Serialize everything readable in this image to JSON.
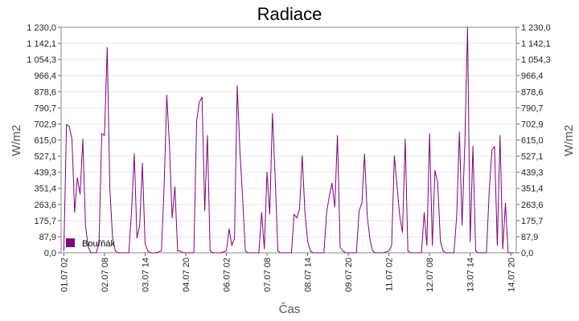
{
  "chart_data": {
    "type": "line",
    "title": "Radiace",
    "xlabel": "Čas",
    "ylabel": "W/m2",
    "ylabel_right": "W/m2",
    "ylim": [
      0,
      1230
    ],
    "yticks": [
      "0,0",
      "87,9",
      "175,7",
      "263,6",
      "351,4",
      "439,3",
      "527,1",
      "615,0",
      "702,9",
      "790,7",
      "878,6",
      "966,4",
      "1 054,3",
      "1 142,1",
      "1 230,0"
    ],
    "xtick_labels": [
      "01.07 02",
      "02.07 08",
      "03.07 14",
      "04.07 20",
      "06.07 02",
      "07.07 08",
      "08.07 14",
      "09.07 20",
      "11.07 02",
      "12.07 08",
      "13.07 14",
      "14.07 20"
    ],
    "x_start": "01.07 00",
    "x_end": "14.07 24",
    "grid": true,
    "legend_position": "bottom-left",
    "series": [
      {
        "name": "Bouřňák",
        "color": "#800080",
        "x": [
          "01.07 02",
          "01.07 04",
          "01.07 06",
          "01.07 08",
          "01.07 10",
          "01.07 12",
          "01.07 14",
          "01.07 16",
          "01.07 18",
          "01.07 20",
          "01.07 22",
          "02.07 02",
          "02.07 04",
          "02.07 06",
          "02.07 08",
          "02.07 10",
          "02.07 12",
          "02.07 14",
          "02.07 16",
          "02.07 18",
          "02.07 20",
          "02.07 22",
          "03.07 02",
          "03.07 04",
          "03.07 06",
          "03.07 08",
          "03.07 10",
          "03.07 12",
          "03.07 14",
          "03.07 16",
          "03.07 18",
          "03.07 20",
          "03.07 22",
          "04.07 02",
          "04.07 04",
          "04.07 06",
          "04.07 08",
          "04.07 10",
          "04.07 12",
          "04.07 14",
          "04.07 16",
          "04.07 18",
          "04.07 20",
          "04.07 22",
          "05.07 02",
          "05.07 04",
          "05.07 06",
          "05.07 08",
          "05.07 10",
          "05.07 12",
          "05.07 14",
          "05.07 16",
          "05.07 18",
          "05.07 20",
          "05.07 22",
          "06.07 02",
          "06.07 04",
          "06.07 06",
          "06.07 08",
          "06.07 10",
          "06.07 12",
          "06.07 14",
          "06.07 16",
          "06.07 18",
          "06.07 20",
          "06.07 22",
          "07.07 02",
          "07.07 04",
          "07.07 06",
          "07.07 08",
          "07.07 10",
          "07.07 12",
          "07.07 14",
          "07.07 16",
          "07.07 18",
          "07.07 20",
          "07.07 22",
          "08.07 02",
          "08.07 04",
          "08.07 06",
          "08.07 08",
          "08.07 10",
          "08.07 12",
          "08.07 14",
          "08.07 16",
          "08.07 18",
          "08.07 20",
          "08.07 22",
          "09.07 02",
          "09.07 04",
          "09.07 06",
          "09.07 08",
          "09.07 10",
          "09.07 12",
          "09.07 14",
          "09.07 16",
          "09.07 18",
          "09.07 20",
          "09.07 22",
          "10.07 02",
          "10.07 04",
          "10.07 06",
          "10.07 08",
          "10.07 10",
          "10.07 12",
          "10.07 14",
          "10.07 16",
          "10.07 18",
          "10.07 20",
          "10.07 22",
          "11.07 02",
          "11.07 04",
          "11.07 06",
          "11.07 08",
          "11.07 10",
          "11.07 12",
          "11.07 14",
          "11.07 16",
          "11.07 18",
          "11.07 20",
          "11.07 22",
          "12.07 02",
          "12.07 04",
          "12.07 06",
          "12.07 08",
          "12.07 10",
          "12.07 12",
          "12.07 14",
          "12.07 16",
          "12.07 18",
          "12.07 20",
          "12.07 22",
          "13.07 02",
          "13.07 04",
          "13.07 06",
          "13.07 08",
          "13.07 10",
          "13.07 12",
          "13.07 14",
          "13.07 16",
          "13.07 18",
          "13.07 20",
          "13.07 22",
          "14.07 02",
          "14.07 04",
          "14.07 06",
          "14.07 08",
          "14.07 10",
          "14.07 12",
          "14.07 14",
          "14.07 16",
          "14.07 18",
          "14.07 20",
          "14.07 22"
        ],
        "values": [
          10,
          700,
          690,
          620,
          220,
          410,
          320,
          620,
          150,
          30,
          0,
          0,
          60,
          650,
          640,
          1120,
          350,
          80,
          10,
          0,
          0,
          0,
          0,
          230,
          540,
          80,
          150,
          490,
          50,
          10,
          0,
          0,
          0,
          10,
          350,
          860,
          580,
          190,
          360,
          10,
          10,
          0,
          0,
          0,
          0,
          720,
          820,
          850,
          230,
          640,
          10,
          0,
          0,
          0,
          0,
          10,
          130,
          40,
          80,
          910,
          550,
          300,
          10,
          0,
          0,
          0,
          0,
          220,
          20,
          440,
          210,
          760,
          410,
          10,
          0,
          0,
          0,
          0,
          210,
          190,
          240,
          530,
          220,
          60,
          10,
          0,
          0,
          0,
          0,
          220,
          310,
          380,
          250,
          640,
          30,
          10,
          0,
          0,
          0,
          0,
          230,
          270,
          540,
          200,
          70,
          10,
          0,
          0,
          0,
          0,
          10,
          40,
          530,
          360,
          200,
          110,
          620,
          10,
          0,
          0,
          0,
          0,
          220,
          40,
          650,
          40,
          450,
          380,
          60,
          10,
          0,
          0,
          0,
          200,
          660,
          150,
          590,
          1230,
          60,
          580,
          10,
          0,
          0,
          0,
          330,
          560,
          580,
          40,
          640,
          20,
          270,
          0,
          0,
          0
        ]
      }
    ]
  }
}
